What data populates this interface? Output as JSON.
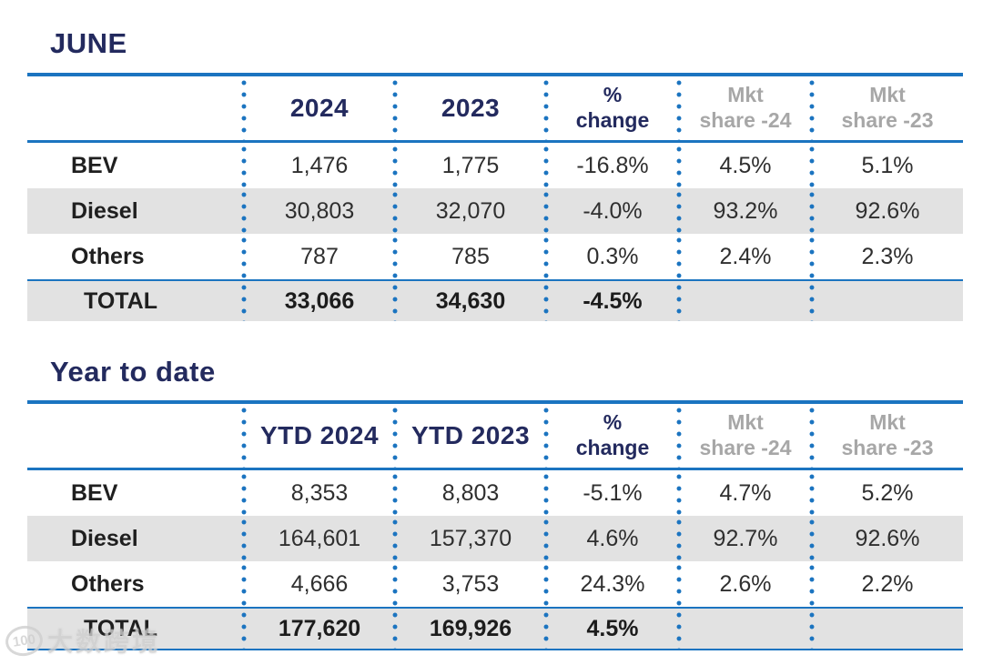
{
  "colors": {
    "navy": "#232a5e",
    "blue": "#1b74c0",
    "graytxt": "#a7a7a7",
    "rowgray": "#e2e2e2"
  },
  "watermark": {
    "logo_text": "100",
    "text": "大数跨境"
  },
  "tables": [
    {
      "title": "JUNE",
      "header": {
        "c1": "2024",
        "c2": "2023",
        "c3_line1": "%",
        "c3_line2": "change",
        "c4_line1": "Mkt",
        "c4_line2": "share -24",
        "c5_line1": "Mkt",
        "c5_line2": "share -23"
      },
      "rows": [
        {
          "label": "BEV",
          "v1": "1,476",
          "v2": "1,775",
          "v3": "-16.8%",
          "v4": "4.5%",
          "v5": "5.1%"
        },
        {
          "label": "Diesel",
          "v1": "30,803",
          "v2": "32,070",
          "v3": "-4.0%",
          "v4": "93.2%",
          "v5": "92.6%"
        },
        {
          "label": "Others",
          "v1": "787",
          "v2": "785",
          "v3": "0.3%",
          "v4": "2.4%",
          "v5": "2.3%"
        }
      ],
      "total": {
        "label": "TOTAL",
        "v1": "33,066",
        "v2": "34,630",
        "v3": "-4.5%",
        "v4": "",
        "v5": ""
      }
    },
    {
      "title": "Year to date",
      "header": {
        "c1": "YTD 2024",
        "c2": "YTD 2023",
        "c3_line1": "%",
        "c3_line2": "change",
        "c4_line1": "Mkt",
        "c4_line2": "share -24",
        "c5_line1": "Mkt",
        "c5_line2": "share -23"
      },
      "rows": [
        {
          "label": "BEV",
          "v1": "8,353",
          "v2": "8,803",
          "v3": "-5.1%",
          "v4": "4.7%",
          "v5": "5.2%"
        },
        {
          "label": "Diesel",
          "v1": "164,601",
          "v2": "157,370",
          "v3": "4.6%",
          "v4": "92.7%",
          "v5": "92.6%"
        },
        {
          "label": "Others",
          "v1": "4,666",
          "v2": "3,753",
          "v3": "24.3%",
          "v4": "2.6%",
          "v5": "2.2%"
        }
      ],
      "total": {
        "label": "TOTAL",
        "v1": "177,620",
        "v2": "169,926",
        "v3": "4.5%",
        "v4": "",
        "v5": ""
      }
    }
  ],
  "chart_data": [
    {
      "type": "table",
      "title": "JUNE",
      "columns": [
        "",
        "2024",
        "2023",
        "% change",
        "Mkt share -24",
        "Mkt share -23"
      ],
      "rows": [
        [
          "BEV",
          1476,
          1775,
          -16.8,
          4.5,
          5.1
        ],
        [
          "Diesel",
          30803,
          32070,
          -4.0,
          93.2,
          92.6
        ],
        [
          "Others",
          787,
          785,
          0.3,
          2.4,
          2.3
        ],
        [
          "TOTAL",
          33066,
          34630,
          -4.5,
          null,
          null
        ]
      ]
    },
    {
      "type": "table",
      "title": "Year to date",
      "columns": [
        "",
        "YTD 2024",
        "YTD 2023",
        "% change",
        "Mkt share -24",
        "Mkt share -23"
      ],
      "rows": [
        [
          "BEV",
          8353,
          8803,
          -5.1,
          4.7,
          5.2
        ],
        [
          "Diesel",
          164601,
          157370,
          4.6,
          92.7,
          92.6
        ],
        [
          "Others",
          4666,
          3753,
          24.3,
          2.6,
          2.2
        ],
        [
          "TOTAL",
          177620,
          169926,
          4.5,
          null,
          null
        ]
      ]
    }
  ]
}
